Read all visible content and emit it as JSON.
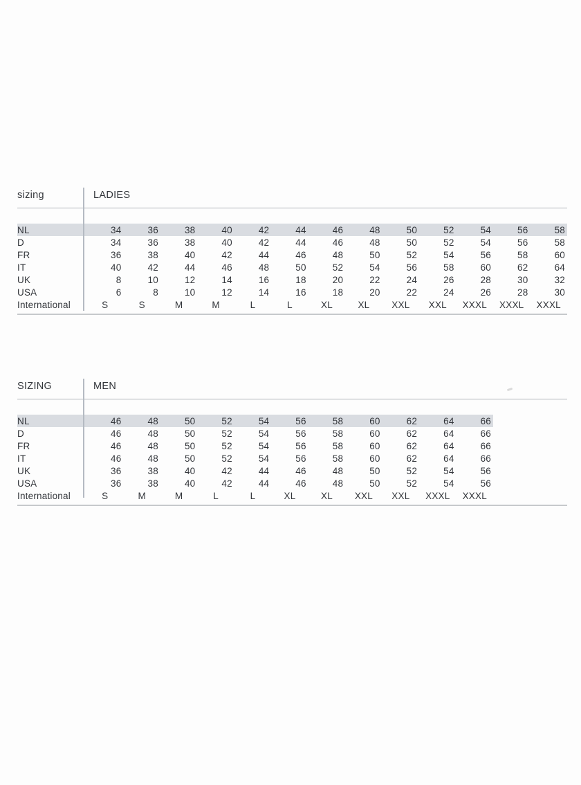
{
  "page": {
    "background_color": "#fdfdfd",
    "text_color": "#33363b",
    "highlight_color": "#d9dce1",
    "divider_color": "#b4bac2",
    "header_rule_color": "#aeb3b8",
    "bottom_rule_color": "#c6c9cc"
  },
  "sections": [
    {
      "label": "sizing",
      "title": "LADIES",
      "rows": [
        {
          "label": "NL",
          "highlight": true,
          "values": [
            "34",
            "36",
            "38",
            "40",
            "42",
            "44",
            "46",
            "48",
            "50",
            "52",
            "54",
            "56",
            "58"
          ]
        },
        {
          "label": "D",
          "values": [
            "34",
            "36",
            "38",
            "40",
            "42",
            "44",
            "46",
            "48",
            "50",
            "52",
            "54",
            "56",
            "58"
          ]
        },
        {
          "label": "FR",
          "values": [
            "36",
            "38",
            "40",
            "42",
            "44",
            "46",
            "48",
            "50",
            "52",
            "54",
            "56",
            "58",
            "60"
          ]
        },
        {
          "label": "IT",
          "values": [
            "40",
            "42",
            "44",
            "46",
            "48",
            "50",
            "52",
            "54",
            "56",
            "58",
            "60",
            "62",
            "64"
          ]
        },
        {
          "label": "UK",
          "values": [
            "8",
            "10",
            "12",
            "14",
            "16",
            "18",
            "20",
            "22",
            "24",
            "26",
            "28",
            "30",
            "32"
          ]
        },
        {
          "label": "USA",
          "values": [
            "6",
            "8",
            "10",
            "12",
            "14",
            "16",
            "18",
            "20",
            "22",
            "24",
            "26",
            "28",
            "30"
          ]
        },
        {
          "label": "International",
          "letters": true,
          "values": [
            "S",
            "S",
            "M",
            "M",
            "L",
            "L",
            "XL",
            "XL",
            "XXL",
            "XXL",
            "XXXL",
            "XXXL",
            "XXXL"
          ]
        }
      ]
    },
    {
      "label": "SIZING",
      "title": "MEN",
      "rows": [
        {
          "label": "NL",
          "highlight": true,
          "values": [
            "46",
            "48",
            "50",
            "52",
            "54",
            "56",
            "58",
            "60",
            "62",
            "64",
            "66"
          ]
        },
        {
          "label": "D",
          "values": [
            "46",
            "48",
            "50",
            "52",
            "54",
            "56",
            "58",
            "60",
            "62",
            "64",
            "66"
          ]
        },
        {
          "label": "FR",
          "values": [
            "46",
            "48",
            "50",
            "52",
            "54",
            "56",
            "58",
            "60",
            "62",
            "64",
            "66"
          ]
        },
        {
          "label": "IT",
          "values": [
            "46",
            "48",
            "50",
            "52",
            "54",
            "56",
            "58",
            "60",
            "62",
            "64",
            "66"
          ]
        },
        {
          "label": "UK",
          "values": [
            "36",
            "38",
            "40",
            "42",
            "44",
            "46",
            "48",
            "50",
            "52",
            "54",
            "56"
          ]
        },
        {
          "label": "USA",
          "values": [
            "36",
            "38",
            "40",
            "42",
            "44",
            "46",
            "48",
            "50",
            "52",
            "54",
            "56"
          ]
        },
        {
          "label": "International",
          "letters": true,
          "values": [
            "S",
            "M",
            "M",
            "L",
            "L",
            "XL",
            "XL",
            "XXL",
            "XXL",
            "XXXL",
            "XXXL"
          ]
        }
      ]
    }
  ]
}
